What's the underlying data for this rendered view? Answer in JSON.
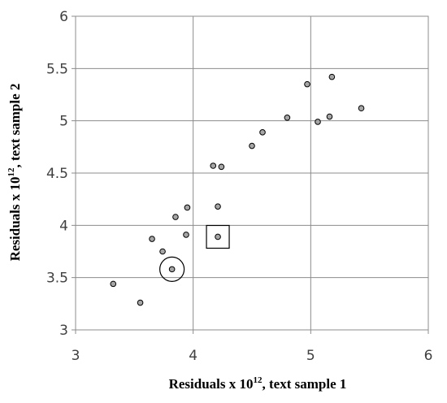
{
  "chart_data": {
    "type": "scatter",
    "xlabel": {
      "pre": "Residuals x 10",
      "sup": "12",
      "post": ", text sample 1"
    },
    "ylabel": {
      "pre": "Residuals x 10",
      "sup": "12",
      "post": ", text sample 2"
    },
    "xlim": [
      3,
      6
    ],
    "ylim": [
      3,
      6
    ],
    "xticks": [
      "3",
      "4",
      "5",
      "6"
    ],
    "yticks": [
      "3",
      "3.5",
      "4",
      "4.5",
      "5",
      "5.5",
      "6"
    ],
    "grid": true,
    "points": [
      {
        "x": 3.32,
        "y": 3.44
      },
      {
        "x": 3.55,
        "y": 3.26
      },
      {
        "x": 3.65,
        "y": 3.87
      },
      {
        "x": 3.74,
        "y": 3.75
      },
      {
        "x": 3.82,
        "y": 3.58
      },
      {
        "x": 3.85,
        "y": 4.08
      },
      {
        "x": 3.94,
        "y": 3.91
      },
      {
        "x": 3.95,
        "y": 4.17
      },
      {
        "x": 4.17,
        "y": 4.57
      },
      {
        "x": 4.21,
        "y": 4.18
      },
      {
        "x": 4.21,
        "y": 3.89
      },
      {
        "x": 4.24,
        "y": 4.56
      },
      {
        "x": 4.5,
        "y": 4.76
      },
      {
        "x": 4.59,
        "y": 4.89
      },
      {
        "x": 4.8,
        "y": 5.03
      },
      {
        "x": 4.97,
        "y": 5.35
      },
      {
        "x": 5.06,
        "y": 4.99
      },
      {
        "x": 5.16,
        "y": 5.04
      },
      {
        "x": 5.18,
        "y": 5.42
      },
      {
        "x": 5.43,
        "y": 5.12
      }
    ],
    "highlights": [
      {
        "shape": "circle",
        "x": 3.82,
        "y": 3.58
      },
      {
        "shape": "square",
        "x": 4.21,
        "y": 3.89
      }
    ],
    "colors": {
      "point_fill": "#a6a6a6",
      "point_stroke": "#000000",
      "grid": "#8c8c8c"
    }
  }
}
